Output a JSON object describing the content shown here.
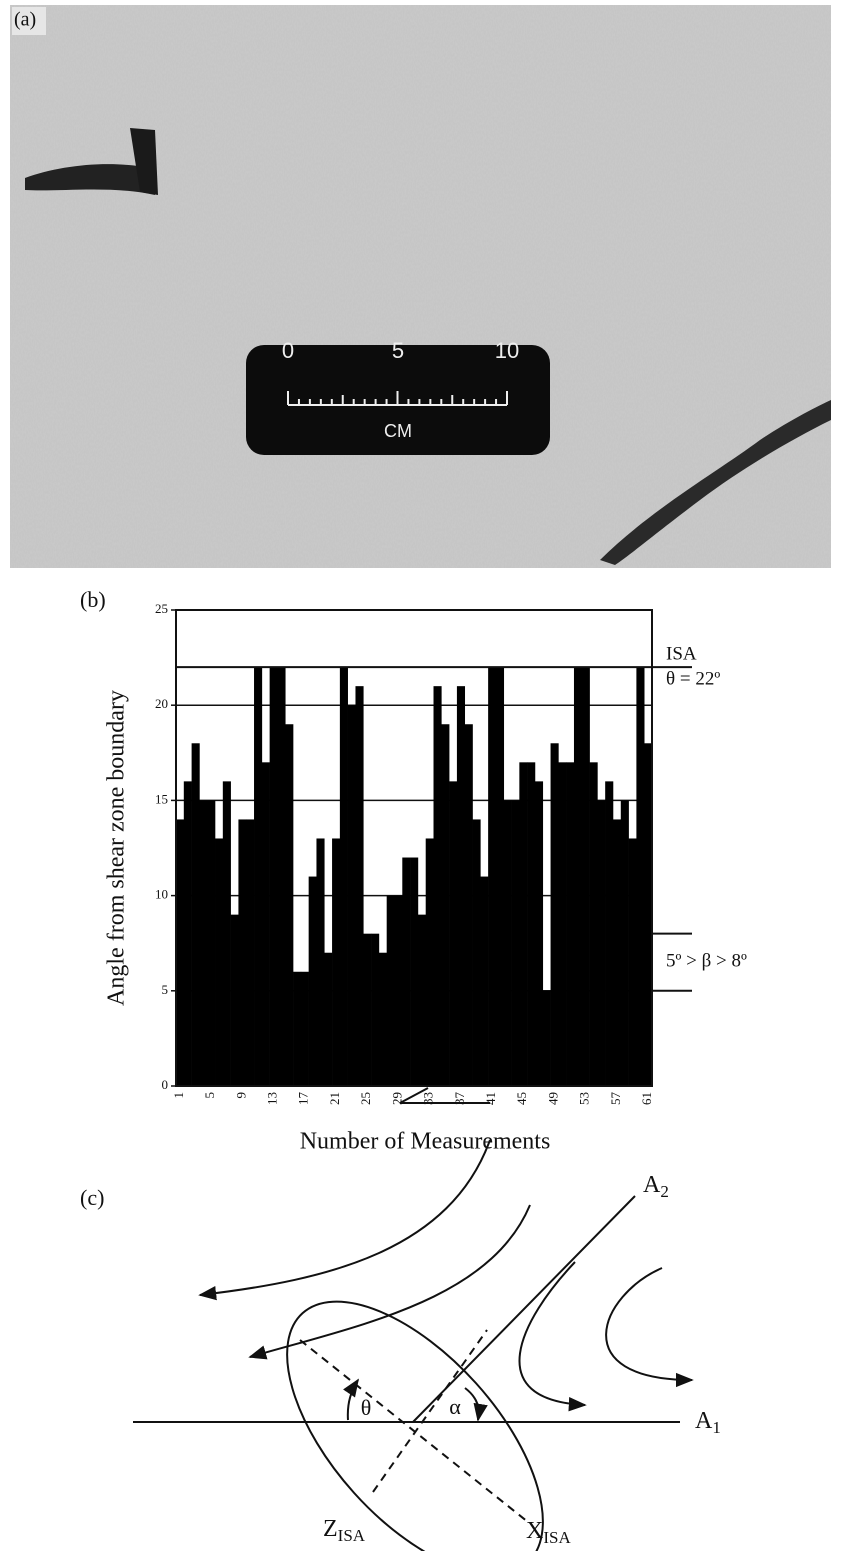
{
  "panel_a": {
    "label": "(a)",
    "scale_labels": [
      "0",
      "5",
      "10"
    ],
    "scale_unit": "CM"
  },
  "chart_data": {
    "type": "bar",
    "panel_label": "(b)",
    "y_label": "Angle from shear zone boundary",
    "x_label": "Number of Measurements",
    "categories": [
      "1",
      null,
      null,
      null,
      "5",
      null,
      null,
      null,
      "9",
      null,
      null,
      null,
      "13",
      null,
      null,
      null,
      "17",
      null,
      null,
      null,
      "21",
      null,
      null,
      null,
      "25",
      null,
      null,
      null,
      "29",
      null,
      null,
      null,
      "33",
      null,
      null,
      null,
      "37",
      null,
      null,
      null,
      "41",
      null,
      null,
      null,
      "45",
      null,
      null,
      null,
      "49",
      null,
      null,
      null,
      "53",
      null,
      null,
      null,
      "57",
      null,
      null,
      null,
      "61"
    ],
    "values": [
      14,
      16,
      18,
      15,
      15,
      13,
      16,
      9,
      14,
      14,
      22,
      17,
      22,
      22,
      19,
      6,
      6,
      11,
      13,
      7,
      13,
      22,
      20,
      21,
      8,
      8,
      7,
      10,
      10,
      12,
      12,
      9,
      13,
      21,
      19,
      16,
      21,
      19,
      14,
      11,
      22,
      22,
      15,
      15,
      17,
      17,
      16,
      5,
      18,
      17,
      17,
      22,
      22,
      17,
      15,
      16,
      14,
      15,
      13,
      22,
      18
    ],
    "color": "#000000",
    "ylim": [
      0,
      25
    ],
    "yticks": [
      0,
      5,
      10,
      15,
      20,
      25
    ],
    "grid": true,
    "annotations": [
      {
        "lines": [
          "ISA",
          "θ = 22º"
        ],
        "value": 22
      },
      {
        "lines": [
          "5º > β > 8º"
        ],
        "range": [
          5,
          8
        ]
      }
    ]
  },
  "panel_c": {
    "label": "(c)",
    "a2": {
      "base": "A",
      "sub": "2"
    },
    "a1": {
      "base": "A",
      "sub": "1"
    },
    "theta": "θ",
    "alpha": "α",
    "z": {
      "base": "Z",
      "sub": "ISA"
    },
    "x": {
      "base": "X",
      "sub": "ISA"
    }
  }
}
